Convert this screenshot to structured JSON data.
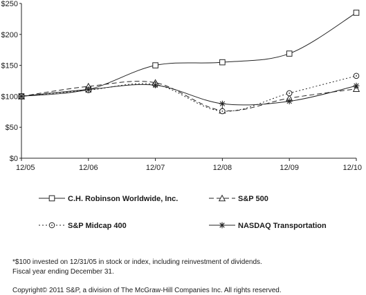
{
  "chart_data": {
    "type": "line",
    "title": "",
    "xlabel": "",
    "ylabel": "",
    "categories": [
      "12/05",
      "12/06",
      "12/07",
      "12/08",
      "12/09",
      "12/10"
    ],
    "yticks": [
      "$0",
      "$50",
      "$100",
      "$150",
      "$200",
      "$250"
    ],
    "ylim": [
      0,
      250
    ],
    "grid": false,
    "legend_position": "bottom",
    "series": [
      {
        "name": "C.H. Robinson Worldwide, Inc.",
        "marker": "square",
        "dash": "solid",
        "values": [
          100,
          111,
          150,
          155,
          169,
          235
        ]
      },
      {
        "name": "S&P 500",
        "marker": "triangle",
        "dash": "dashed",
        "values": [
          100,
          116,
          122,
          77,
          97,
          112
        ]
      },
      {
        "name": "S&P Midcap 400",
        "marker": "circle",
        "dash": "dotted",
        "values": [
          100,
          110,
          119,
          76,
          105,
          133
        ]
      },
      {
        "name": "NASDAQ Transportation",
        "marker": "asterisk",
        "dash": "solid",
        "values": [
          100,
          111,
          118,
          88,
          92,
          117
        ]
      }
    ]
  },
  "footnotes": {
    "line1": "*$100 invested on 12/31/05 in stock or index, including reinvestment of dividends.",
    "line2": "Fiscal year ending December 31.",
    "copyright": "Copyright© 2011 S&P, a division of The McGraw-Hill Companies Inc. All rights reserved."
  }
}
